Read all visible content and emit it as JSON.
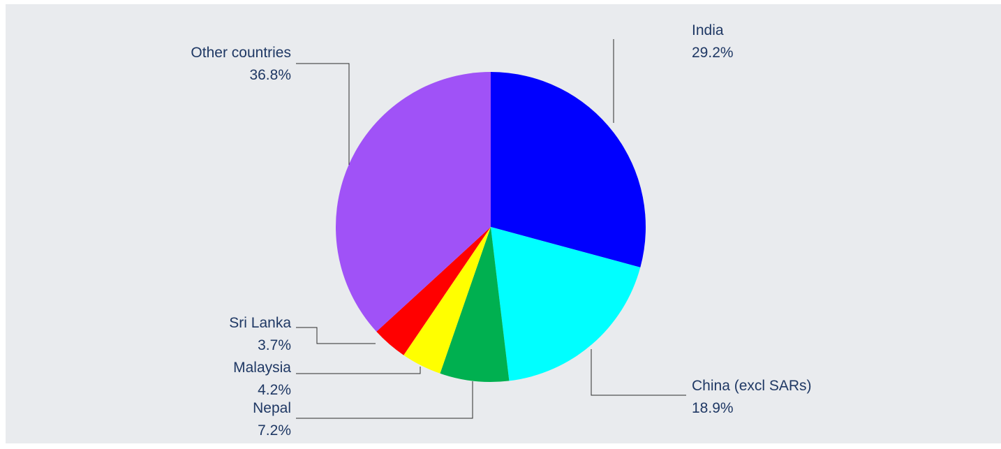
{
  "chart_data": {
    "type": "pie",
    "title": "",
    "start_angle_deg": 0,
    "direction": "clockwise",
    "slices": [
      {
        "label": "India",
        "value": 29.2,
        "value_label": "29.2%",
        "color": "#0000ff"
      },
      {
        "label": "China (excl SARs)",
        "value": 18.9,
        "value_label": "18.9%",
        "color": "#00ffff"
      },
      {
        "label": "Nepal",
        "value": 7.2,
        "value_label": "7.2%",
        "color": "#00b050"
      },
      {
        "label": "Malaysia",
        "value": 4.2,
        "value_label": "4.2%",
        "color": "#ffff00"
      },
      {
        "label": "Sri Lanka",
        "value": 3.7,
        "value_label": "3.7%",
        "color": "#ff0000"
      },
      {
        "label": "Other countries",
        "value": 36.8,
        "value_label": "36.8%",
        "color": "#a052f7"
      }
    ],
    "background_color": "#e9ebee",
    "label_color": "#1f3864",
    "legend": "none"
  }
}
